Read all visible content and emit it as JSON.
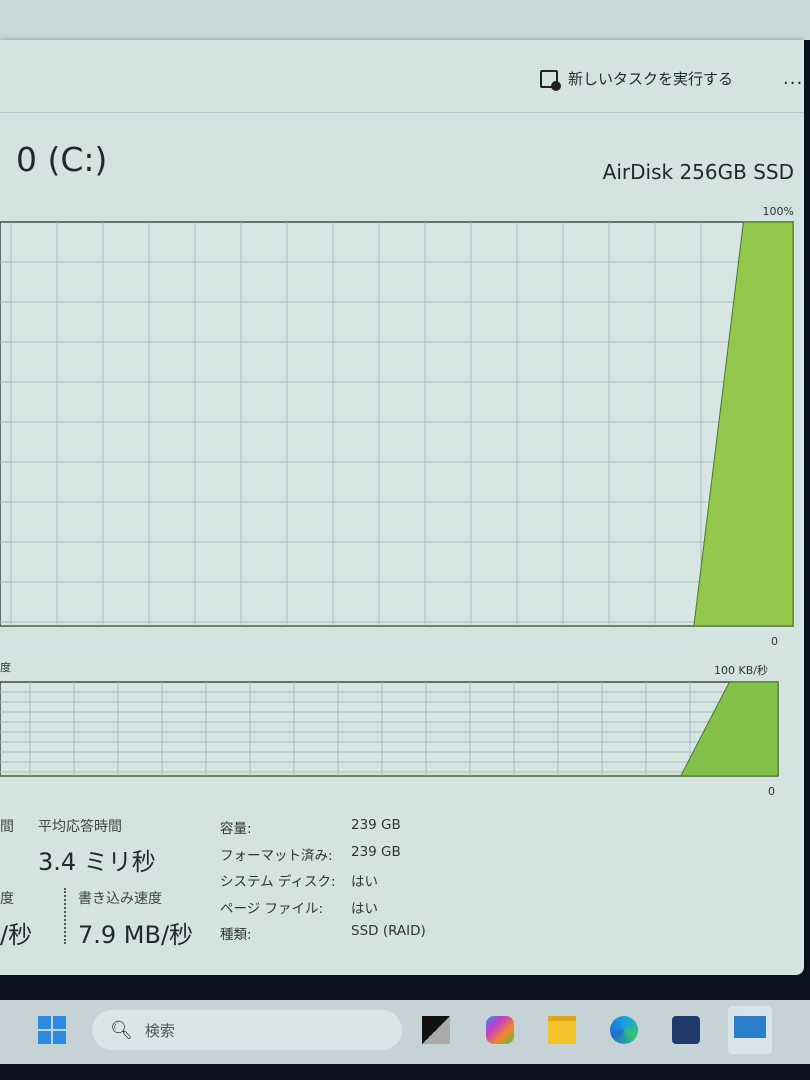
{
  "header": {
    "new_task_label": "新しいタスクを実行する",
    "more_label": "..."
  },
  "disk": {
    "title": "0 (C:)",
    "model": "AirDisk 256GB SSD"
  },
  "active_time_chart": {
    "max_label": "100%",
    "min_label": "0",
    "left_label_fragment": "間"
  },
  "transfer_chart": {
    "label_fragment": "度",
    "max_label": "100 KB/秒",
    "min_label": "0"
  },
  "chart_data": [
    {
      "type": "area",
      "title": "",
      "ylim": [
        0,
        100
      ],
      "unit": "%",
      "values": [
        0,
        0,
        0,
        0,
        0,
        0,
        0,
        0,
        0,
        0,
        0,
        0,
        0,
        0,
        0,
        100,
        100
      ],
      "color": "#8cc43c",
      "grid": true
    },
    {
      "type": "area",
      "title": "",
      "ylim": [
        0,
        100
      ],
      "unit": "KB/秒",
      "values": [
        0,
        0,
        0,
        0,
        0,
        0,
        0,
        0,
        0,
        0,
        0,
        0,
        0,
        0,
        0,
        100,
        100
      ],
      "color": "#7bbd3a",
      "grid": true
    }
  ],
  "stats": {
    "avg_response_label": "平均応答時間",
    "avg_response_value": "3.4 ミリ秒",
    "read_label_fragment": "度",
    "read_value_fragment": "/秒",
    "write_label": "書き込み速度",
    "write_value": "7.9 MB/秒"
  },
  "properties": [
    {
      "key": "容量:",
      "value": "239 GB"
    },
    {
      "key": "フォーマット済み:",
      "value": "239 GB"
    },
    {
      "key": "システム ディスク:",
      "value": "はい"
    },
    {
      "key": "ページ ファイル:",
      "value": "はい"
    },
    {
      "key": "種類:",
      "value": "SSD (RAID)"
    }
  ],
  "taskbar": {
    "search_placeholder": "検索",
    "apps": [
      "start-icon",
      "task-view-icon",
      "copilot-icon",
      "file-explorer-icon",
      "edge-icon",
      "store-icon",
      "task-manager-icon"
    ]
  }
}
